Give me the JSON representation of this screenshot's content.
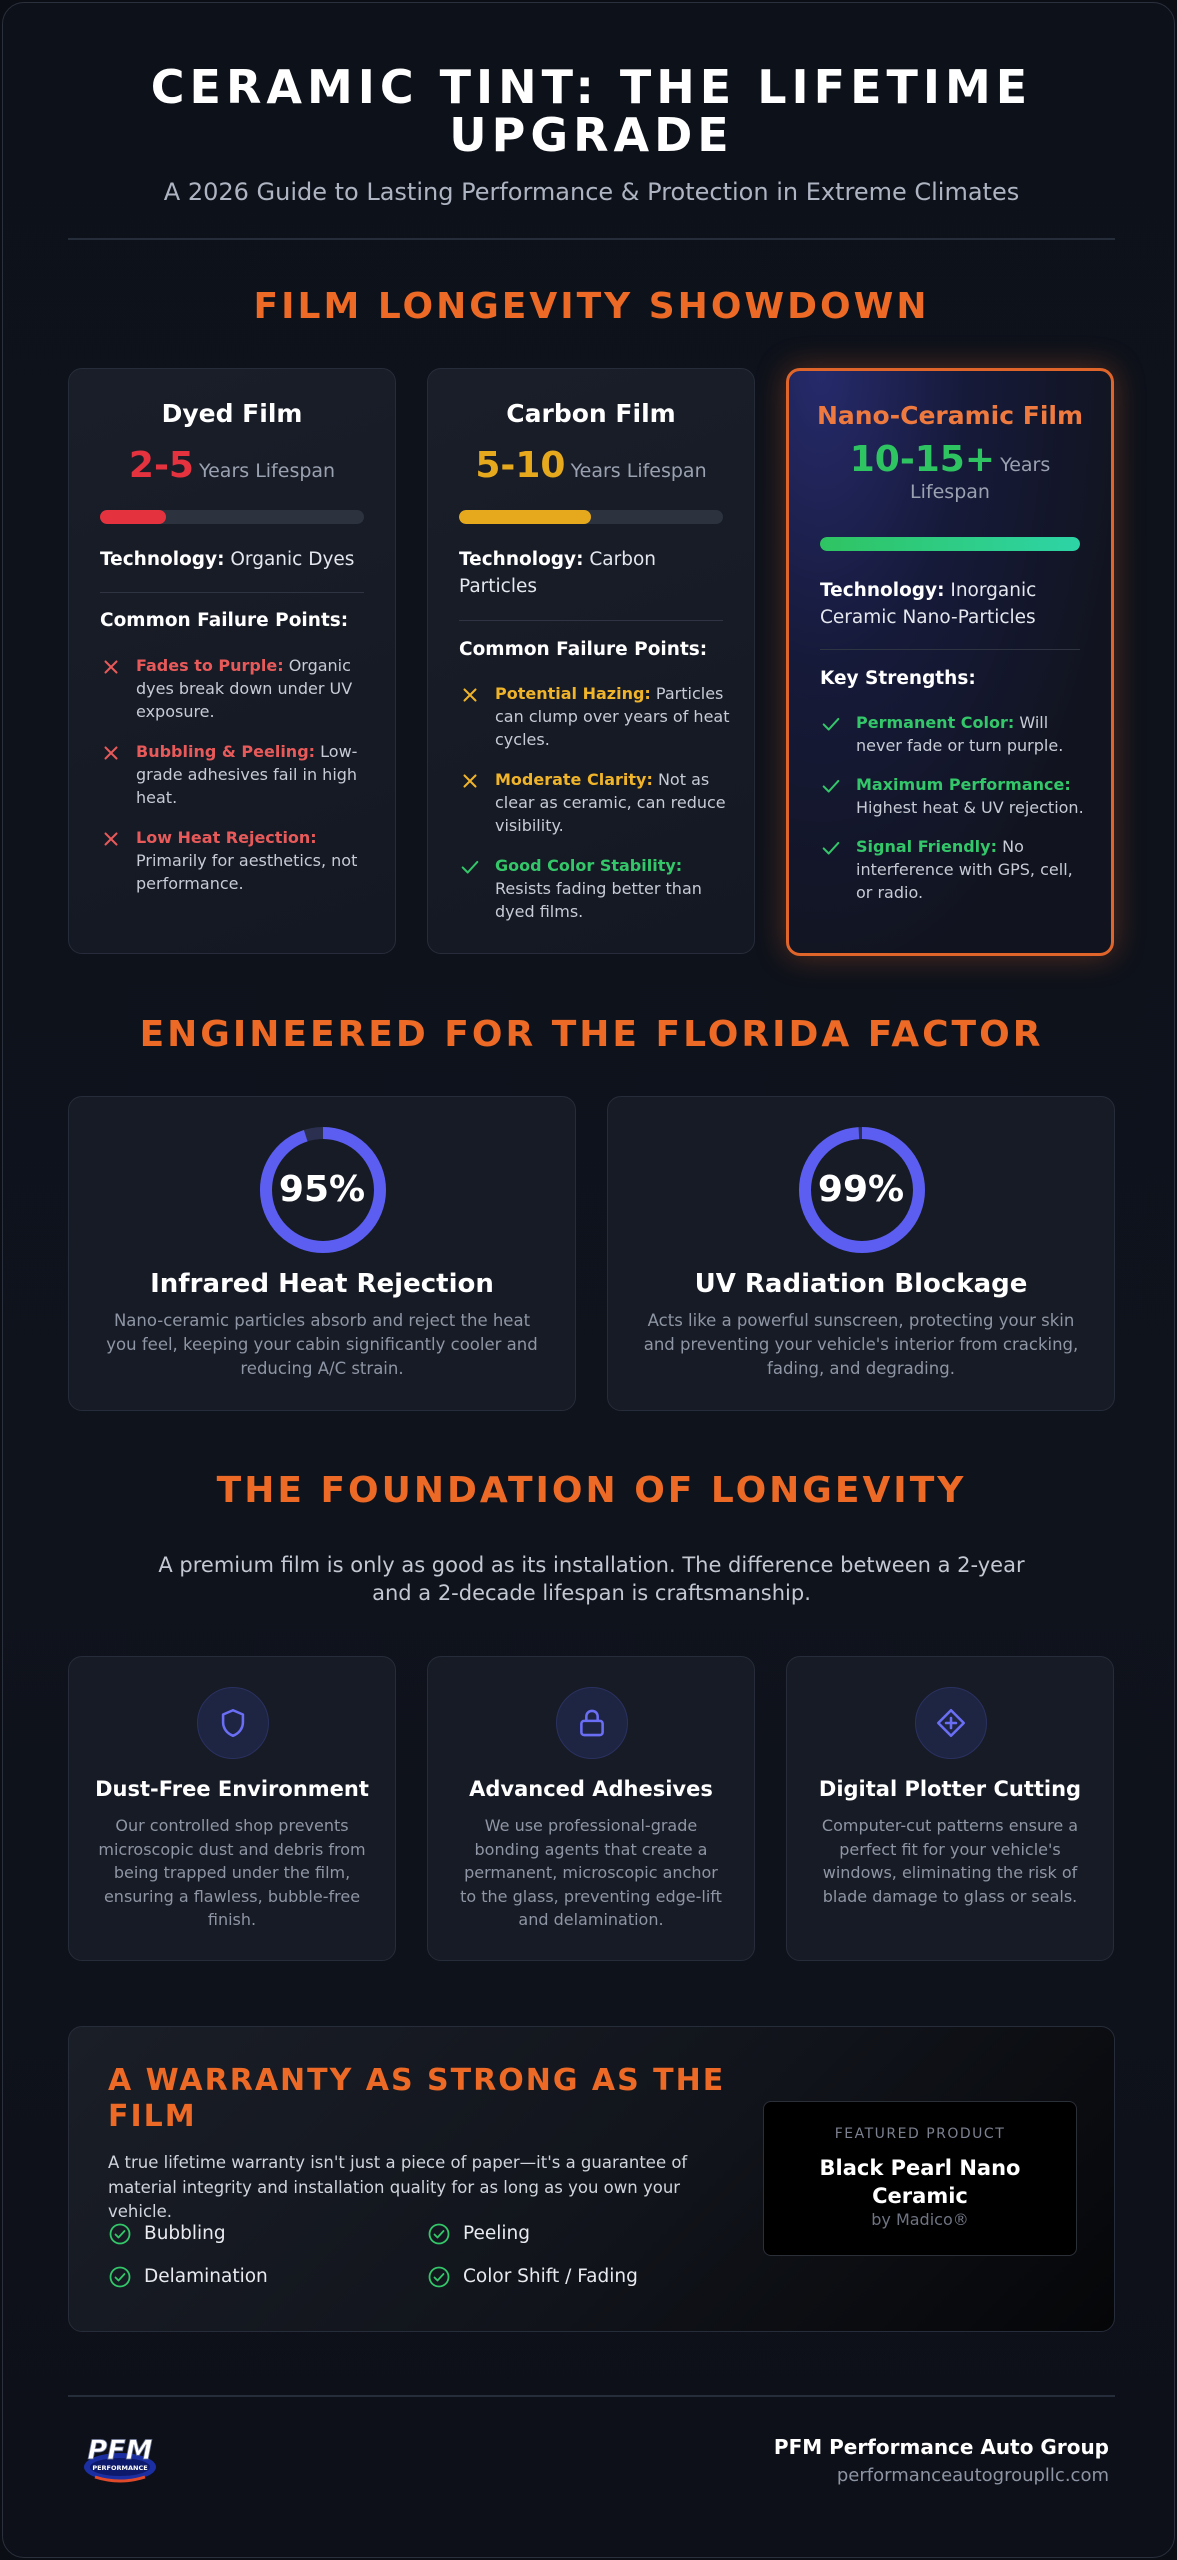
{
  "header": {
    "title": "CERAMIC TINT: THE LIFETIME UPGRADE",
    "subtitle": "A 2026 Guide to Lasting Performance & Protection in Extreme Climates"
  },
  "longevity": {
    "title": "FILM LONGEVITY SHOWDOWN",
    "films": [
      {
        "name": "Dyed Film",
        "lifespan": "2-5",
        "lifespan_label": "Years Lifespan",
        "lifespan_fraction": 0.25,
        "color": "#e5323f",
        "tech_label": "Technology:",
        "tech_value": "Organic Dyes",
        "points_title": "Common Failure Points:",
        "points": [
          {
            "icon": "x-icon",
            "title": "Fades to Purple:",
            "text": "Organic dyes break down under UV exposure.",
            "color": "#e85a5a"
          },
          {
            "icon": "x-icon",
            "title": "Bubbling & Peeling:",
            "text": "Low-grade adhesives fail in high heat.",
            "color": "#e85a5a"
          },
          {
            "icon": "x-icon",
            "title": "Low Heat Rejection:",
            "text": "Primarily for aesthetics, not performance.",
            "color": "#e85a5a"
          }
        ]
      },
      {
        "name": "Carbon Film",
        "lifespan": "5-10",
        "lifespan_label": "Years Lifespan",
        "lifespan_fraction": 0.5,
        "color": "#e6a91d",
        "tech_label": "Technology:",
        "tech_value": "Carbon Particles",
        "points_title": "Common Failure Points:",
        "points": [
          {
            "icon": "x-icon",
            "title": "Potential Hazing:",
            "text": "Particles can clump over years of heat cycles.",
            "color": "#f0b42a"
          },
          {
            "icon": "x-icon",
            "title": "Moderate Clarity:",
            "text": "Not as clear as ceramic, can reduce visibility.",
            "color": "#f0b42a"
          },
          {
            "icon": "check-icon",
            "title": "Good Color Stability:",
            "text": "Resists fading better than dyed films.",
            "color": "#34c76a"
          }
        ]
      },
      {
        "name": "Nano-Ceramic Film",
        "lifespan": "10-15+",
        "lifespan_label": "Years Lifespan",
        "lifespan_fraction": 1.0,
        "color": "#2fc462",
        "tech_label": "Technology:",
        "tech_value": "Inorganic Ceramic Nano-Particles",
        "points_title": "Key Strengths:",
        "points": [
          {
            "icon": "check-icon",
            "title": "Permanent Color:",
            "text": "Will never fade or turn purple.",
            "color": "#34c76a"
          },
          {
            "icon": "check-icon",
            "title": "Maximum Performance:",
            "text": "Highest heat & UV rejection.",
            "color": "#34c76a"
          },
          {
            "icon": "check-icon",
            "title": "Signal Friendly:",
            "text": "No interference with GPS, cell, or radio.",
            "color": "#34c76a"
          }
        ]
      }
    ]
  },
  "florida": {
    "title": "ENGINEERED FOR THE FLORIDA FACTOR",
    "stats": [
      {
        "value": "95%",
        "percent": 95,
        "name": "Infrared Heat Rejection",
        "desc": "Nano-ceramic particles absorb and reject the heat you feel, keeping your cabin significantly cooler and reducing A/C strain."
      },
      {
        "value": "99%",
        "percent": 99,
        "name": "UV Radiation Blockage",
        "desc": "Acts like a powerful sunscreen, protecting your skin and preventing your vehicle's interior from cracking, fading, and degrading."
      }
    ],
    "ring_color": "#5b5ef0"
  },
  "foundation": {
    "title": "THE FOUNDATION OF LONGEVITY",
    "intro": "A premium film is only as good as its installation. The difference between a 2-year and a 2-decade lifespan is craftsmanship.",
    "items": [
      {
        "icon": "shield-icon",
        "name": "Dust-Free Environment",
        "desc": "Our controlled shop prevents microscopic dust and debris from being trapped under the film, ensuring a flawless, bubble-free finish."
      },
      {
        "icon": "lock-icon",
        "name": "Advanced Adhesives",
        "desc": "We use professional-grade bonding agents that create a permanent, microscopic anchor to the glass, preventing edge-lift and delamination."
      },
      {
        "icon": "diamond-plus-icon",
        "name": "Digital Plotter Cutting",
        "desc": "Computer-cut patterns ensure a perfect fit for your vehicle's windows, eliminating the risk of blade damage to glass or seals."
      }
    ]
  },
  "warranty": {
    "title": "A WARRANTY AS STRONG AS THE FILM",
    "desc": "A true lifetime warranty isn't just a piece of paper—it's a guarantee of material integrity and installation quality for as long as you own your vehicle.",
    "items": [
      "Bubbling",
      "Peeling",
      "Delamination",
      "Color Shift / Fading"
    ],
    "product": {
      "tag": "FEATURED PRODUCT",
      "name": "Black Pearl Nano Ceramic",
      "by": "by Madico®"
    }
  },
  "footer": {
    "logo_text": "PFM",
    "logo_sub": "PERFORMANCE",
    "company": "PFM Performance Auto Group",
    "website": "performanceautogroupllc.com"
  }
}
